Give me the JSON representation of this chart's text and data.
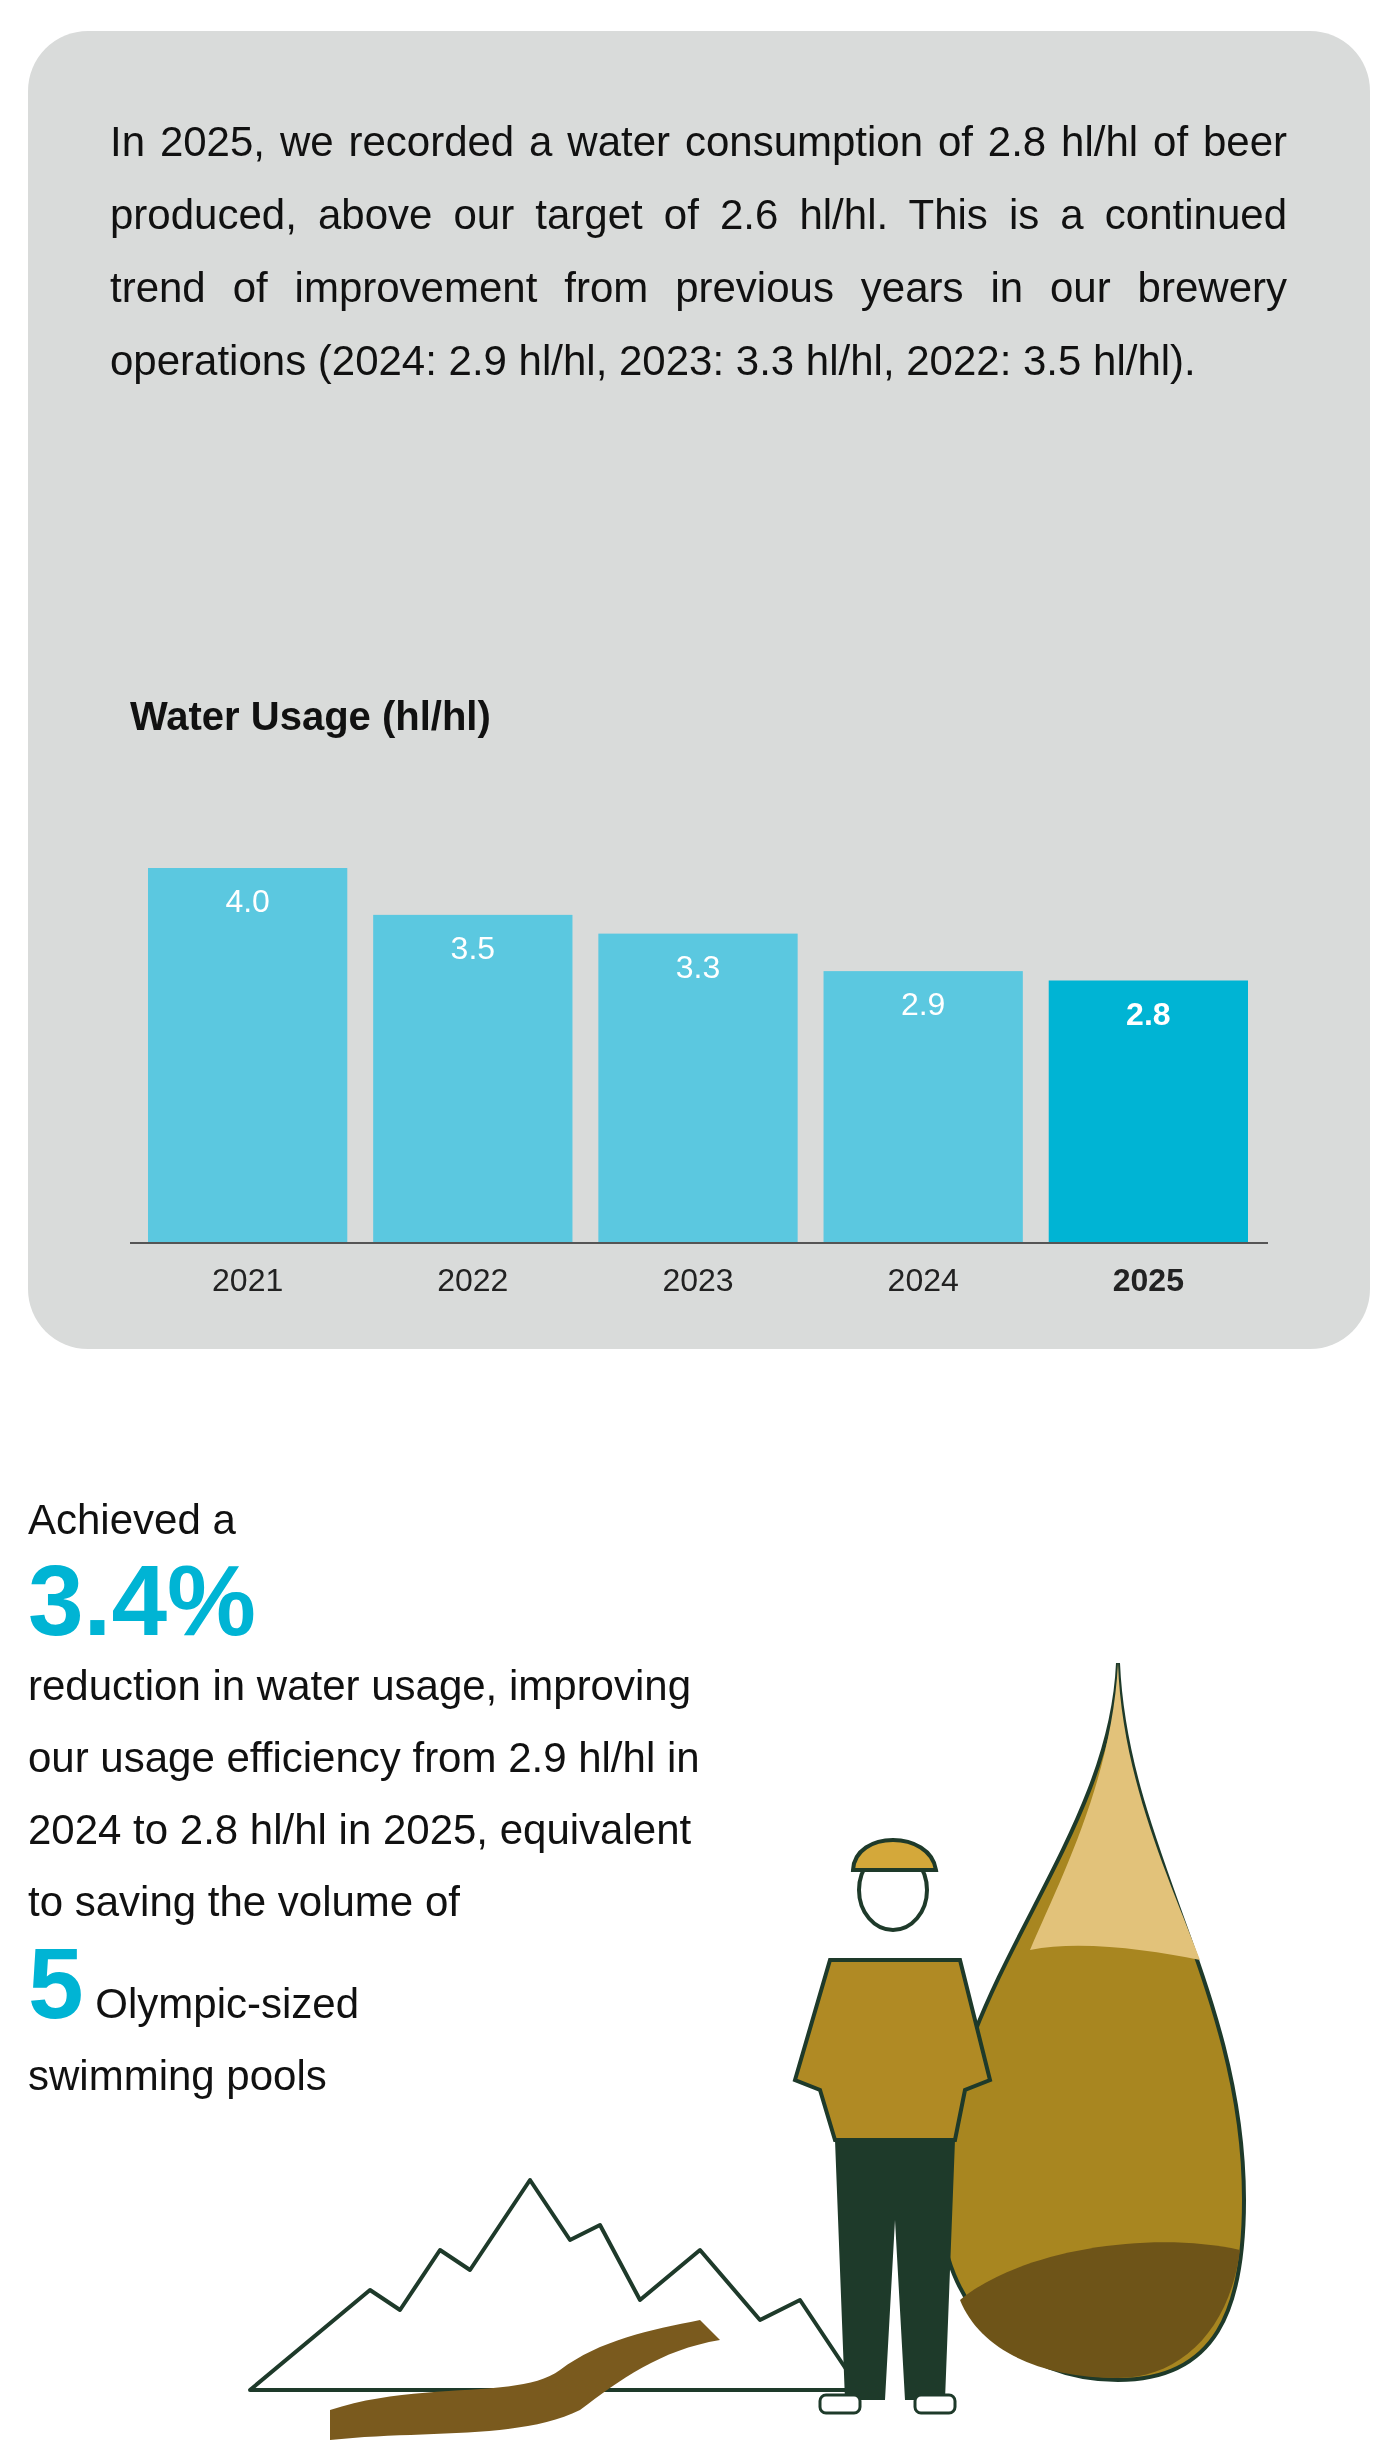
{
  "chart_data": {
    "type": "bar",
    "title": "Water Usage (hl/hl)",
    "categories": [
      "2021",
      "2022",
      "2023",
      "2024",
      "2025"
    ],
    "values": [
      4.0,
      3.5,
      3.3,
      2.9,
      2.8
    ],
    "colors": [
      "#5bc8e0",
      "#5bc8e0",
      "#5bc8e0",
      "#5bc8e0",
      "#00b4d4"
    ],
    "value_labels": [
      "4.0",
      "3.5",
      "3.3",
      "2.9",
      "2.8"
    ],
    "annotations": [
      "In 2025, we recorded a water consumption of 2.8 hl/hl of beer produced, above our target of 2.6 hl/hl. This is a continued trend of improvement from previous years in our brewery operations (2024: 2.9 hl/hl, 2023: 3.3 hl/hl, 2022: 3.5 hl/hl).",
      "Achieved a",
      "3.4%",
      "reduction in water usage, improving our usage efficiency from 2.9 hl/hl in 2024 to 2.8 hl/hl in 2025, equivalent to saving the volume of",
      "5",
      "Olympic-sized swimming pools"
    ]
  }
}
